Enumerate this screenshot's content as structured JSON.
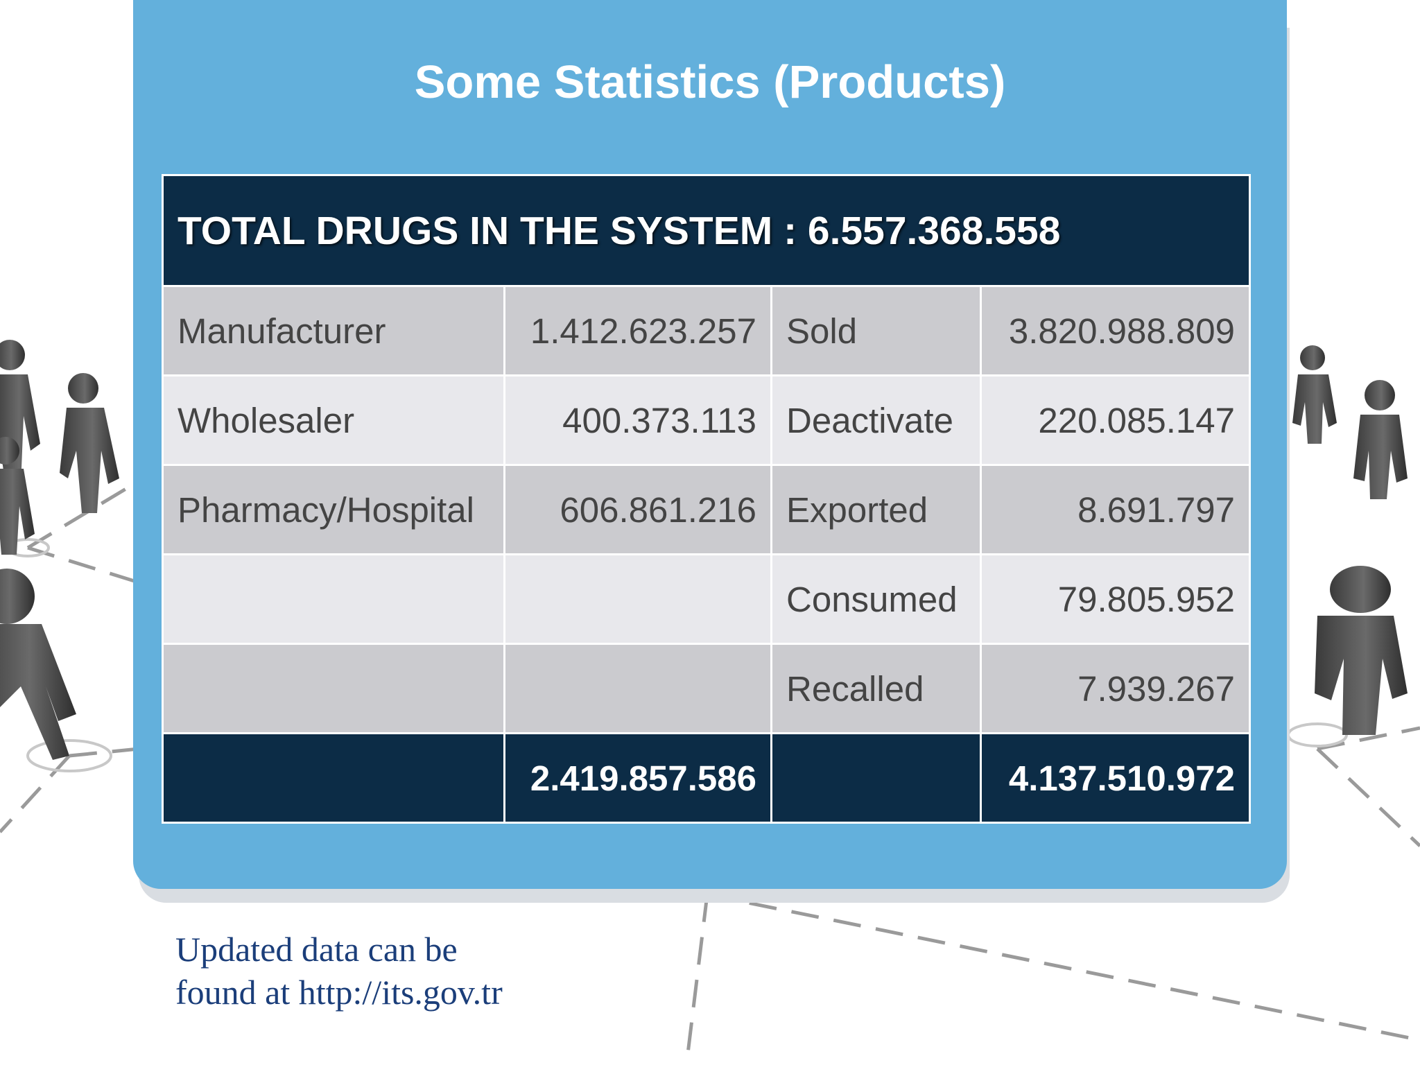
{
  "title": "Some Statistics (Products)",
  "table": {
    "header": "TOTAL DRUGS IN THE SYSTEM : 6.557.368.558",
    "rows": [
      {
        "left_label": "Manufacturer",
        "left_value": "1.412.623.257",
        "right_label": "Sold",
        "right_value": "3.820.988.809"
      },
      {
        "left_label": "Wholesaler",
        "left_value": "400.373.113",
        "right_label": "Deactivate",
        "right_value": "220.085.147"
      },
      {
        "left_label": "Pharmacy/Hospital",
        "left_value": "606.861.216",
        "right_label": "Exported",
        "right_value": "8.691.797"
      },
      {
        "left_label": "",
        "left_value": "",
        "right_label": "Consumed",
        "right_value": "79.805.952"
      },
      {
        "left_label": "",
        "left_value": "",
        "right_label": "Recalled",
        "right_value": "7.939.267"
      }
    ],
    "totals": {
      "left_total": "2.419.857.586",
      "right_total": "4.137.510.972"
    }
  },
  "footnote": {
    "line1": "Updated data can be",
    "line2": "found at http://its.gov.tr"
  },
  "colors": {
    "panel": "#63b0dc",
    "table_header": "#0c2c46",
    "row_dark": "#cbcbcf",
    "row_light": "#e8e8ec",
    "footnote_text": "#1b3e7a"
  }
}
